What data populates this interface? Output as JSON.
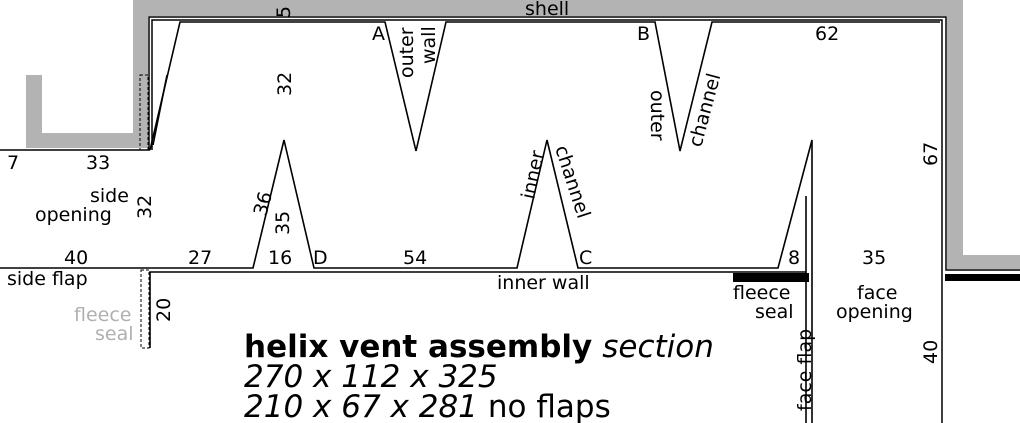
{
  "labels": {
    "shell": "shell",
    "dim_5": "5",
    "A": "A",
    "outer_wall": "outer\nwall",
    "B": "B",
    "dim_62": "62",
    "dim_32_top": "32",
    "outer": "outer",
    "channel_upper": "channel",
    "dim_7": "7",
    "dim_33": "33",
    "side_opening": "side\nopening",
    "dim_32_side": "32",
    "dim_36": "36",
    "dim_35_tri": "35",
    "inner": "inner",
    "channel_lower": "channel",
    "dim_67": "67",
    "dim_40_left": "40",
    "dim_27": "27",
    "dim_16": "16",
    "D": "D",
    "dim_54": "54",
    "C": "C",
    "dim_8": "8",
    "dim_35_face": "35",
    "side_flap": "side flap",
    "inner_wall": "inner wall",
    "fleece_seal_left": "fleece\nseal",
    "dim_20": "20",
    "fleece_seal_right": "fleece\nseal",
    "face_opening": "face\nopening",
    "face_flap": "face flap",
    "dim_40_right": "40"
  },
  "title": {
    "bold": "helix vent assembly",
    "italic": "section",
    "line2": "270 x 112 x 325",
    "line3_italic": "210 x 67 x 281",
    "line3_normal": "no flaps"
  },
  "colors": {
    "shell": "#b3b3b3",
    "line": "#000000",
    "ghost_text": "#b0b0b0",
    "seal": "#000000"
  }
}
